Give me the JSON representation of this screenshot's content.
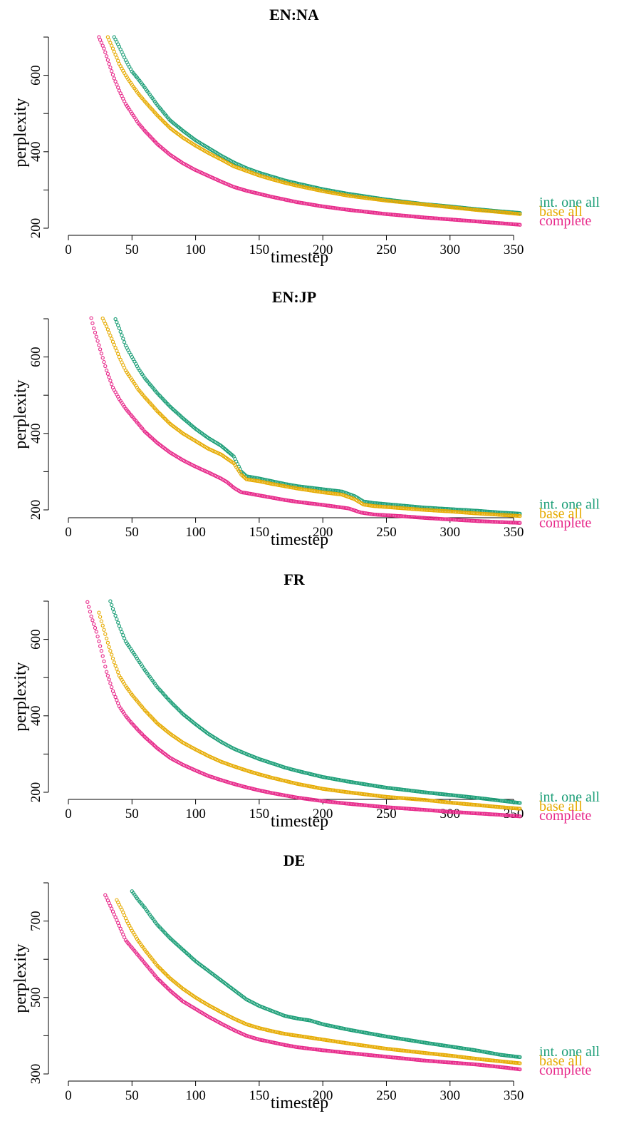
{
  "chart_data": [
    {
      "type": "scatter",
      "title": "EN:NA",
      "xlabel": "timestep",
      "ylabel": "perplexity",
      "xlim": [
        0,
        355
      ],
      "ylim": [
        200,
        700
      ],
      "xticks": [
        "0",
        "50",
        "100",
        "150",
        "200",
        "250",
        "300",
        "350"
      ],
      "yticks": [
        "200",
        "400",
        "600"
      ],
      "series": [
        {
          "name": "int. one all",
          "color": "#1b9e77",
          "x": [
            36,
            40,
            45,
            50,
            55,
            60,
            70,
            80,
            90,
            100,
            110,
            120,
            130,
            140,
            150,
            160,
            170,
            180,
            200,
            220,
            250,
            280,
            300,
            320,
            340,
            355
          ],
          "y": [
            700,
            675,
            640,
            610,
            590,
            568,
            522,
            482,
            455,
            430,
            410,
            390,
            372,
            357,
            345,
            335,
            325,
            317,
            302,
            290,
            275,
            263,
            257,
            250,
            244,
            240
          ]
        },
        {
          "name": "base all",
          "color": "#e6ab02",
          "x": [
            31,
            35,
            40,
            45,
            50,
            55,
            60,
            70,
            80,
            90,
            100,
            110,
            120,
            130,
            140,
            150,
            160,
            170,
            180,
            200,
            220,
            250,
            280,
            300,
            320,
            340,
            355
          ],
          "y": [
            700,
            670,
            630,
            600,
            575,
            552,
            532,
            495,
            462,
            437,
            416,
            397,
            380,
            362,
            350,
            338,
            328,
            319,
            311,
            297,
            285,
            272,
            262,
            255,
            248,
            242,
            237
          ]
        },
        {
          "name": "complete",
          "color": "#e7298a",
          "x": [
            24,
            28,
            32,
            36,
            40,
            45,
            50,
            55,
            60,
            70,
            80,
            90,
            100,
            110,
            120,
            130,
            140,
            150,
            160,
            170,
            180,
            200,
            220,
            250,
            280,
            300,
            320,
            340,
            355
          ],
          "y": [
            700,
            670,
            630,
            592,
            560,
            525,
            500,
            475,
            455,
            420,
            392,
            370,
            352,
            337,
            322,
            308,
            298,
            290,
            282,
            275,
            268,
            257,
            248,
            237,
            228,
            223,
            218,
            213,
            209
          ]
        }
      ]
    },
    {
      "type": "scatter",
      "title": "EN:JP",
      "xlabel": "timestep",
      "ylabel": "perplexity",
      "xlim": [
        0,
        355
      ],
      "ylim": [
        200,
        700
      ],
      "xticks": [
        "0",
        "50",
        "100",
        "150",
        "200",
        "250",
        "300",
        "350"
      ],
      "yticks": [
        "200",
        "400",
        "600"
      ],
      "series": [
        {
          "name": "int. one all",
          "color": "#1b9e77",
          "x": [
            35,
            40,
            45,
            50,
            55,
            60,
            70,
            80,
            90,
            100,
            110,
            120,
            130,
            136,
            140,
            150,
            160,
            170,
            180,
            200,
            215,
            225,
            232,
            240,
            260,
            280,
            300,
            320,
            340,
            355
          ],
          "y": [
            715,
            675,
            630,
            600,
            570,
            545,
            505,
            470,
            440,
            412,
            388,
            368,
            340,
            300,
            288,
            282,
            275,
            268,
            262,
            254,
            248,
            236,
            222,
            218,
            212,
            206,
            202,
            198,
            193,
            190
          ]
        },
        {
          "name": "base all",
          "color": "#e6ab02",
          "x": [
            25,
            30,
            35,
            40,
            45,
            50,
            55,
            60,
            70,
            80,
            90,
            100,
            110,
            120,
            130,
            136,
            140,
            150,
            160,
            170,
            180,
            200,
            215,
            225,
            232,
            240,
            260,
            280,
            300,
            320,
            340,
            355
          ],
          "y": [
            715,
            680,
            640,
            600,
            565,
            540,
            515,
            495,
            458,
            425,
            400,
            380,
            360,
            345,
            322,
            292,
            280,
            275,
            268,
            262,
            256,
            246,
            240,
            228,
            214,
            210,
            205,
            200,
            196,
            191,
            187,
            184
          ]
        },
        {
          "name": "complete",
          "color": "#e7298a",
          "x": [
            17,
            20,
            25,
            30,
            35,
            40,
            45,
            50,
            55,
            60,
            70,
            80,
            90,
            100,
            110,
            120,
            125,
            130,
            136,
            140,
            150,
            160,
            170,
            180,
            200,
            220,
            230,
            240,
            260,
            280,
            300,
            320,
            340,
            355
          ],
          "y": [
            715,
            675,
            620,
            565,
            520,
            490,
            465,
            445,
            425,
            405,
            375,
            350,
            330,
            313,
            298,
            282,
            272,
            258,
            246,
            244,
            238,
            232,
            226,
            221,
            213,
            204,
            193,
            188,
            184,
            179,
            175,
            171,
            168,
            166
          ]
        }
      ]
    },
    {
      "type": "scatter",
      "title": "FR",
      "xlabel": "timestep",
      "ylabel": "perplexity",
      "xlim": [
        0,
        355
      ],
      "ylim": [
        200,
        700
      ],
      "xticks": [
        "0",
        "50",
        "100",
        "150",
        "200",
        "250",
        "300",
        "350"
      ],
      "yticks": [
        "200",
        "400",
        "600"
      ],
      "series": [
        {
          "name": "int. one all",
          "color": "#1b9e77",
          "x": [
            32,
            35,
            40,
            45,
            50,
            55,
            60,
            70,
            80,
            90,
            100,
            110,
            120,
            130,
            140,
            150,
            160,
            170,
            180,
            200,
            220,
            250,
            280,
            300,
            320,
            340,
            355
          ],
          "y": [
            710,
            680,
            635,
            595,
            570,
            545,
            520,
            475,
            438,
            405,
            378,
            353,
            332,
            314,
            300,
            287,
            276,
            265,
            256,
            240,
            228,
            212,
            200,
            193,
            186,
            178,
            172
          ]
        },
        {
          "name": "base all",
          "color": "#e6ab02",
          "x": [
            24,
            28,
            32,
            36,
            40,
            45,
            50,
            55,
            60,
            70,
            80,
            90,
            100,
            110,
            120,
            130,
            140,
            150,
            160,
            170,
            180,
            200,
            220,
            250,
            280,
            300,
            320,
            340,
            355
          ],
          "y": [
            670,
            625,
            580,
            540,
            505,
            478,
            455,
            435,
            415,
            380,
            353,
            330,
            312,
            295,
            280,
            268,
            257,
            247,
            238,
            230,
            222,
            209,
            200,
            188,
            180,
            173,
            167,
            161,
            157
          ]
        },
        {
          "name": "complete",
          "color": "#e7298a",
          "x": [
            14,
            18,
            22,
            26,
            30,
            35,
            40,
            45,
            50,
            55,
            60,
            70,
            80,
            90,
            100,
            110,
            120,
            130,
            140,
            150,
            160,
            170,
            180,
            200,
            220,
            250,
            280,
            300,
            320,
            340,
            355
          ],
          "y": [
            710,
            660,
            620,
            570,
            515,
            465,
            425,
            400,
            380,
            362,
            345,
            315,
            290,
            272,
            257,
            243,
            232,
            222,
            213,
            205,
            198,
            192,
            186,
            177,
            170,
            161,
            154,
            149,
            145,
            141,
            137
          ]
        }
      ]
    },
    {
      "type": "scatter",
      "title": "DE",
      "xlabel": "timestep",
      "ylabel": "perplexity",
      "xlim": [
        0,
        355
      ],
      "ylim": [
        300,
        800
      ],
      "xticks": [
        "0",
        "50",
        "100",
        "150",
        "200",
        "250",
        "300",
        "350"
      ],
      "yticks": [
        "300",
        "500",
        "700"
      ],
      "series": [
        {
          "name": "int. one all",
          "color": "#1b9e77",
          "x": [
            50,
            55,
            60,
            65,
            70,
            80,
            90,
            100,
            110,
            120,
            130,
            140,
            150,
            160,
            170,
            180,
            190,
            200,
            220,
            250,
            280,
            300,
            320,
            340,
            355
          ],
          "y": [
            778,
            755,
            735,
            712,
            690,
            655,
            625,
            595,
            570,
            545,
            520,
            495,
            478,
            465,
            452,
            445,
            440,
            430,
            416,
            398,
            382,
            372,
            362,
            350,
            344
          ]
        },
        {
          "name": "base all",
          "color": "#e6ab02",
          "x": [
            38,
            42,
            46,
            50,
            55,
            60,
            70,
            80,
            90,
            100,
            110,
            120,
            130,
            140,
            150,
            160,
            170,
            180,
            200,
            220,
            250,
            280,
            300,
            320,
            340,
            355
          ],
          "y": [
            755,
            730,
            700,
            675,
            648,
            625,
            583,
            550,
            523,
            500,
            480,
            462,
            445,
            430,
            420,
            412,
            405,
            400,
            390,
            380,
            366,
            355,
            348,
            340,
            333,
            328
          ]
        },
        {
          "name": "complete",
          "color": "#e7298a",
          "x": [
            29,
            33,
            37,
            41,
            45,
            50,
            55,
            60,
            70,
            80,
            90,
            100,
            110,
            120,
            130,
            140,
            150,
            160,
            170,
            180,
            200,
            220,
            250,
            280,
            300,
            320,
            340,
            355
          ],
          "y": [
            768,
            740,
            710,
            680,
            650,
            630,
            610,
            590,
            550,
            518,
            490,
            470,
            450,
            432,
            415,
            400,
            390,
            383,
            376,
            370,
            362,
            355,
            345,
            335,
            330,
            325,
            318,
            312
          ]
        }
      ]
    }
  ]
}
